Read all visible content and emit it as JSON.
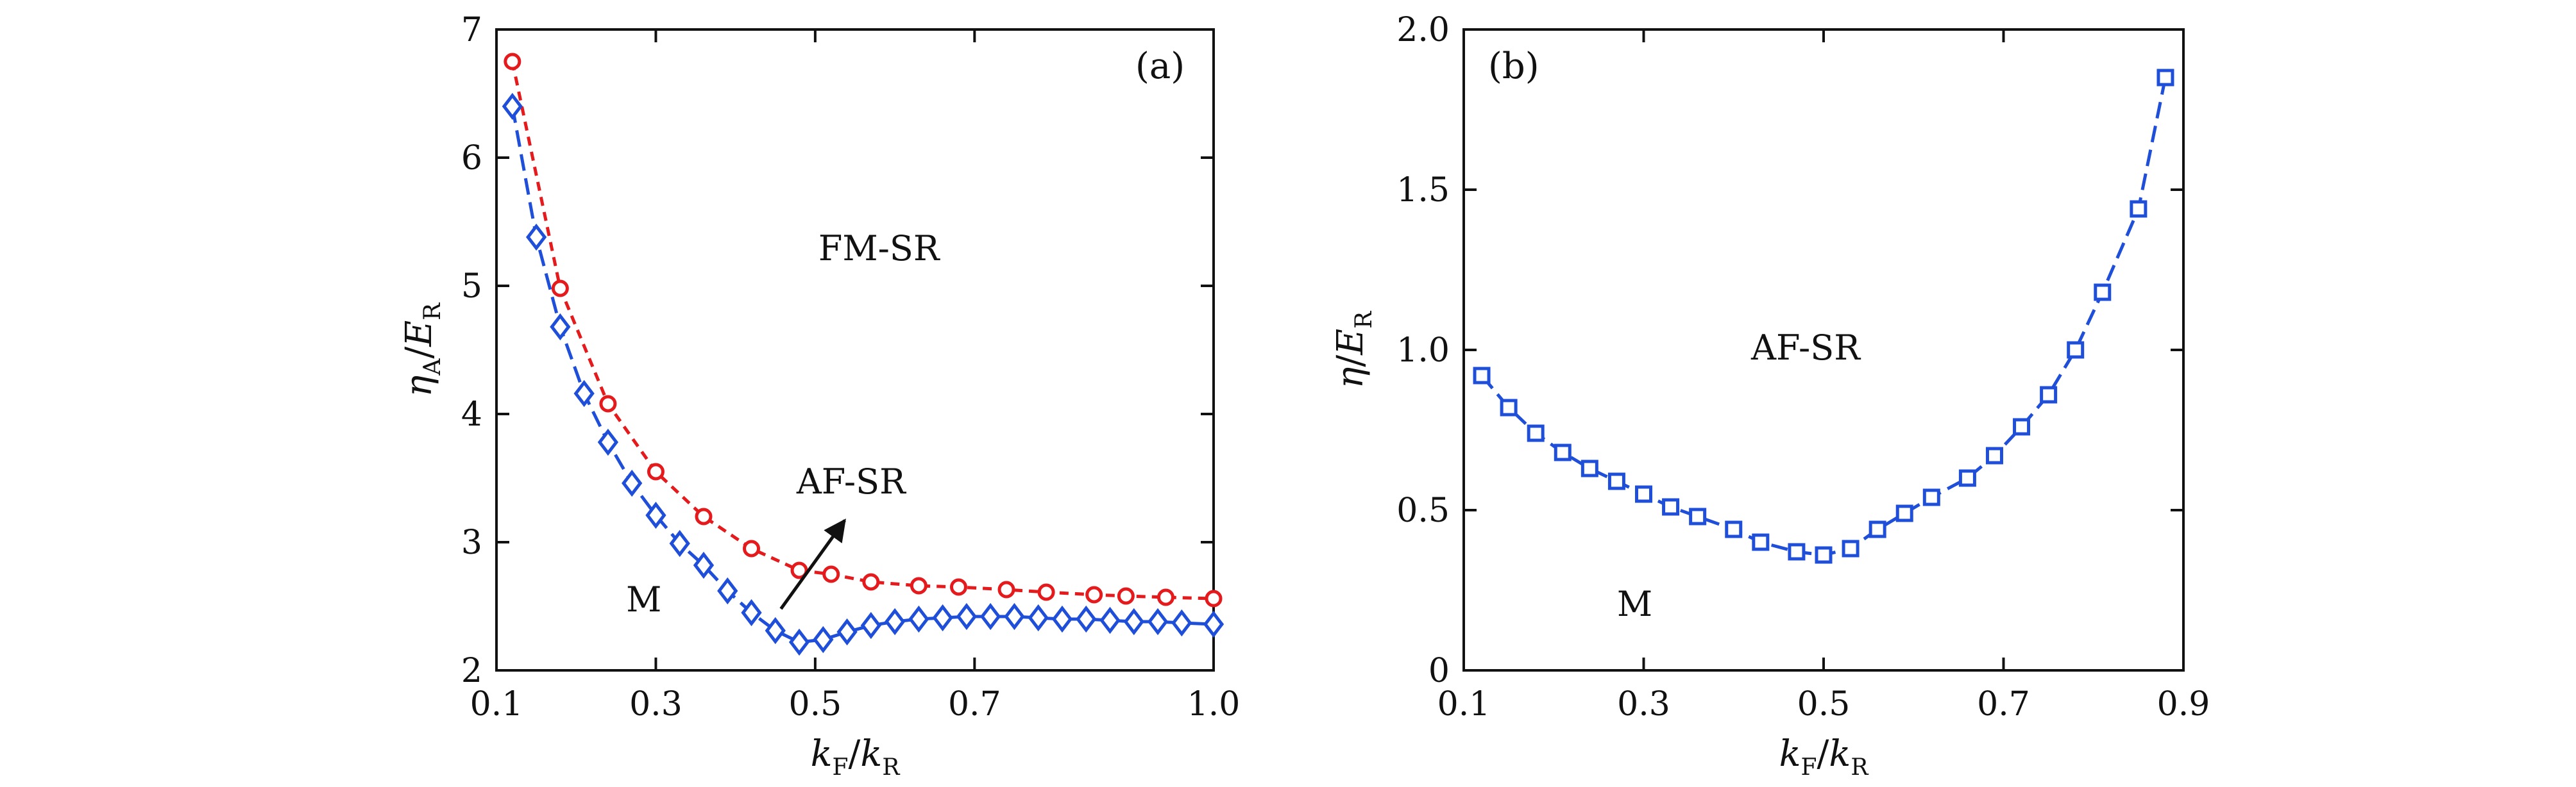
{
  "chart_data": [
    {
      "type": "line",
      "panel_label": "(a)",
      "xlabel": {
        "main": "k",
        "sub": "F",
        "slash": "/",
        "main2": "k",
        "sub2": "R"
      },
      "ylabel": {
        "main": "η",
        "sub": "A",
        "slash": "/",
        "main2": "E",
        "sub2": "R"
      },
      "xlim": [
        0.1,
        1.0
      ],
      "ylim": [
        2,
        7
      ],
      "xticks": [
        "0.1",
        "0.3",
        "0.5",
        "0.7",
        "1.0"
      ],
      "xtick_values": [
        0.1,
        0.3,
        0.5,
        0.7,
        1.0
      ],
      "yticks": [
        "2",
        "3",
        "4",
        "5",
        "6",
        "7"
      ],
      "ytick_values": [
        2,
        3,
        4,
        5,
        6,
        7
      ],
      "series": [
        {
          "name": "FM-SR boundary",
          "marker": "circle",
          "color": "#e41a1c",
          "dash": "14 10",
          "x": [
            0.12,
            0.18,
            0.24,
            0.3,
            0.36,
            0.42,
            0.48,
            0.52,
            0.57,
            0.63,
            0.68,
            0.74,
            0.79,
            0.85,
            0.89,
            0.94,
            1.0
          ],
          "y": [
            6.75,
            4.98,
            4.08,
            3.55,
            3.2,
            2.95,
            2.78,
            2.75,
            2.69,
            2.66,
            2.65,
            2.63,
            2.61,
            2.59,
            2.58,
            2.57,
            2.56
          ]
        },
        {
          "name": "AF-SR lower boundary",
          "marker": "diamond",
          "color": "#1f4fd8",
          "dash": "26 12",
          "x": [
            0.12,
            0.15,
            0.18,
            0.21,
            0.24,
            0.27,
            0.3,
            0.33,
            0.36,
            0.39,
            0.42,
            0.45,
            0.48,
            0.51,
            0.54,
            0.57,
            0.6,
            0.63,
            0.66,
            0.69,
            0.72,
            0.75,
            0.78,
            0.81,
            0.84,
            0.87,
            0.9,
            0.93,
            0.96,
            1.0
          ],
          "y": [
            6.4,
            5.38,
            4.68,
            4.16,
            3.78,
            3.46,
            3.21,
            2.99,
            2.82,
            2.62,
            2.45,
            2.31,
            2.22,
            2.24,
            2.3,
            2.35,
            2.38,
            2.4,
            2.41,
            2.42,
            2.42,
            2.42,
            2.41,
            2.4,
            2.4,
            2.39,
            2.38,
            2.38,
            2.37,
            2.36
          ]
        }
      ],
      "annotations": [
        {
          "text": "FM-SR",
          "x": 0.58,
          "y": 5.2
        },
        {
          "text": "AF-SR",
          "x": 0.545,
          "y": 3.38
        },
        {
          "text": "M",
          "x": 0.285,
          "y": 2.46
        }
      ],
      "arrow": {
        "from": [
          0.457,
          2.48
        ],
        "to": [
          0.537,
          3.17
        ]
      }
    },
    {
      "type": "line",
      "panel_label": "(b)",
      "xlabel": {
        "main": "k",
        "sub": "F",
        "slash": "/",
        "main2": "k",
        "sub2": "R"
      },
      "ylabel": {
        "main": "η",
        "sub": "",
        "slash": "/",
        "main2": "E",
        "sub2": "R"
      },
      "xlim": [
        0.1,
        0.9
      ],
      "ylim": [
        0,
        2.0
      ],
      "xticks": [
        "0.1",
        "0.3",
        "0.5",
        "0.7",
        "0.9"
      ],
      "xtick_values": [
        0.1,
        0.3,
        0.5,
        0.7,
        0.9
      ],
      "yticks": [
        "0",
        "0.5",
        "1.0",
        "1.5",
        "2.0"
      ],
      "ytick_values": [
        0,
        0.5,
        1.0,
        1.5,
        2.0
      ],
      "series": [
        {
          "name": "AF-SR boundary",
          "marker": "square",
          "color": "#1f4fd8",
          "dash": "26 12",
          "x": [
            0.12,
            0.15,
            0.18,
            0.21,
            0.24,
            0.27,
            0.3,
            0.33,
            0.36,
            0.4,
            0.43,
            0.47,
            0.5,
            0.53,
            0.56,
            0.59,
            0.62,
            0.66,
            0.69,
            0.72,
            0.75,
            0.78,
            0.81,
            0.85,
            0.88
          ],
          "y": [
            0.92,
            0.82,
            0.74,
            0.68,
            0.63,
            0.59,
            0.55,
            0.51,
            0.48,
            0.44,
            0.4,
            0.37,
            0.36,
            0.38,
            0.44,
            0.49,
            0.54,
            0.6,
            0.67,
            0.76,
            0.86,
            1.0,
            1.18,
            1.44,
            1.85
          ]
        }
      ],
      "annotations": [
        {
          "text": "AF-SR",
          "x": 0.48,
          "y": 0.97
        },
        {
          "text": "M",
          "x": 0.29,
          "y": 0.17
        }
      ]
    }
  ]
}
